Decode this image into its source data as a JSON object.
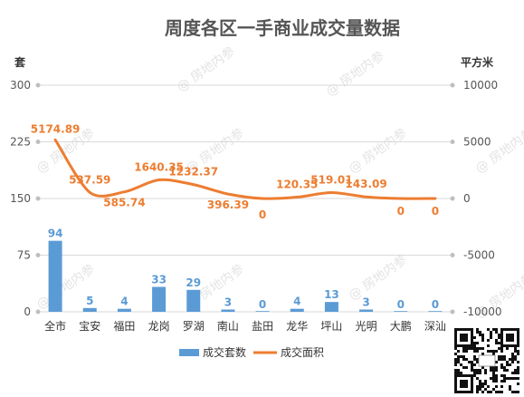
{
  "chart_data": {
    "type": "bar",
    "title": "周度各区一手商业成交量数据",
    "left_axis_unit": "套",
    "right_axis_unit": "平方米",
    "categories": [
      "全市",
      "宝安",
      "福田",
      "龙岗",
      "罗湖",
      "南山",
      "盐田",
      "龙华",
      "坪山",
      "光明",
      "大鹏",
      "深汕"
    ],
    "series": [
      {
        "name": "成交套数",
        "type": "bar",
        "axis": "left",
        "color": "#5b9bd5",
        "values": [
          94,
          5,
          4,
          33,
          29,
          3,
          0,
          4,
          13,
          3,
          0,
          0
        ],
        "labels": [
          "94",
          "5",
          "4",
          "33",
          "29",
          "3",
          "0",
          "4",
          "13",
          "3",
          "0",
          "0"
        ]
      },
      {
        "name": "成交面积",
        "type": "line",
        "axis": "right",
        "color": "#ed7d31",
        "values": [
          5174.89,
          537.59,
          585.74,
          1640.35,
          1232.37,
          396.39,
          0,
          120.35,
          519.01,
          143.09,
          0,
          0
        ],
        "labels": [
          "5174.89",
          "537.59",
          "585.74",
          "1640.35",
          "1232.37",
          "396.39",
          "0",
          "120.35",
          "519.01",
          "143.09",
          "0",
          "0"
        ]
      }
    ],
    "left_axis": {
      "min": 0,
      "max": 300,
      "ticks": [
        "0",
        "75",
        "150",
        "225",
        "300"
      ]
    },
    "right_axis": {
      "min": -10000,
      "max": 10000,
      "ticks": [
        "-10000",
        "-5000",
        "0",
        "5000",
        "10000"
      ]
    },
    "grid": true,
    "legend": "bottom",
    "watermark": "@ 房地内参"
  }
}
